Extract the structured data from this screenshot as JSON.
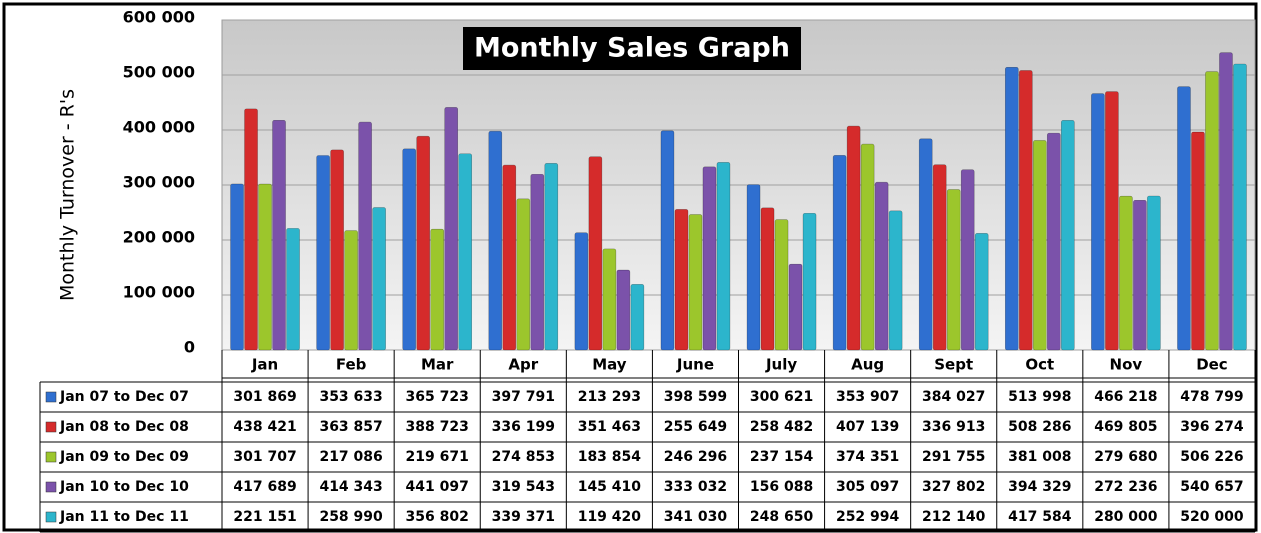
{
  "chart_data": {
    "type": "bar",
    "title": "Monthly Sales Graph",
    "y_label": "Monthly Turnover - R's",
    "categories": [
      "Jan",
      "Feb",
      "Mar",
      "Apr",
      "May",
      "June",
      "July",
      "Aug",
      "Sept",
      "Oct",
      "Nov",
      "Dec"
    ],
    "series": [
      {
        "name": "Jan 07 to Dec 07",
        "color": "#2f6fd0",
        "values": [
          301869,
          353633,
          365723,
          397791,
          213293,
          398599,
          300621,
          353907,
          384027,
          513998,
          466218,
          478799
        ],
        "value_labels": [
          "301 869",
          "353 633",
          "365 723",
          "397 791",
          "213 293",
          "398 599",
          "300 621",
          "353 907",
          "384 027",
          "513 998",
          "466 218",
          "478 799"
        ]
      },
      {
        "name": "Jan 08 to Dec 08",
        "color": "#d52b2b",
        "values": [
          438421,
          363857,
          388723,
          336199,
          351463,
          255649,
          258482,
          407139,
          336913,
          508286,
          469805,
          396274
        ],
        "value_labels": [
          "438 421",
          "363 857",
          "388 723",
          "336 199",
          "351 463",
          "255 649",
          "258 482",
          "407 139",
          "336 913",
          "508 286",
          "469 805",
          "396 274"
        ]
      },
      {
        "name": "Jan 09 to Dec 09",
        "color": "#9cc62c",
        "values": [
          301707,
          217086,
          219671,
          274853,
          183854,
          246296,
          237154,
          374351,
          291755,
          381008,
          279680,
          506226
        ],
        "value_labels": [
          "301 707",
          "217 086",
          "219 671",
          "274 853",
          "183 854",
          "246 296",
          "237 154",
          "374 351",
          "291 755",
          "381 008",
          "279 680",
          "506 226"
        ]
      },
      {
        "name": "Jan 10 to Dec 10",
        "color": "#7b52aa",
        "values": [
          417689,
          414343,
          441097,
          319543,
          145410,
          333032,
          156088,
          305097,
          327802,
          394329,
          272236,
          540657
        ],
        "value_labels": [
          "417 689",
          "414 343",
          "441 097",
          "319 543",
          "145 410",
          "333 032",
          "156 088",
          "305 097",
          "327 802",
          "394 329",
          "272 236",
          "540 657"
        ]
      },
      {
        "name": "Jan 11 to Dec 11",
        "color": "#2cb5cc",
        "values": [
          221151,
          258990,
          356802,
          339371,
          119420,
          341030,
          248650,
          252994,
          212140,
          417584,
          280000,
          520000
        ],
        "value_labels": [
          "221 151",
          "258 990",
          "356 802",
          "339 371",
          "119 420",
          "341 030",
          "248 650",
          "252 994",
          "212 140",
          "417 584",
          "280 000",
          "520 000"
        ]
      }
    ],
    "ylim": [
      0,
      600000
    ],
    "yticks": [
      0,
      {
        "value": 100000,
        "label": "100 000"
      },
      {
        "value": 200000,
        "label": "200 000"
      },
      {
        "value": 300000,
        "label": "300 000"
      },
      {
        "value": 400000,
        "label": "400 000"
      },
      {
        "value": 500000,
        "label": "500 000"
      },
      {
        "value": 600000,
        "label": "600 000"
      }
    ],
    "grid": true
  }
}
